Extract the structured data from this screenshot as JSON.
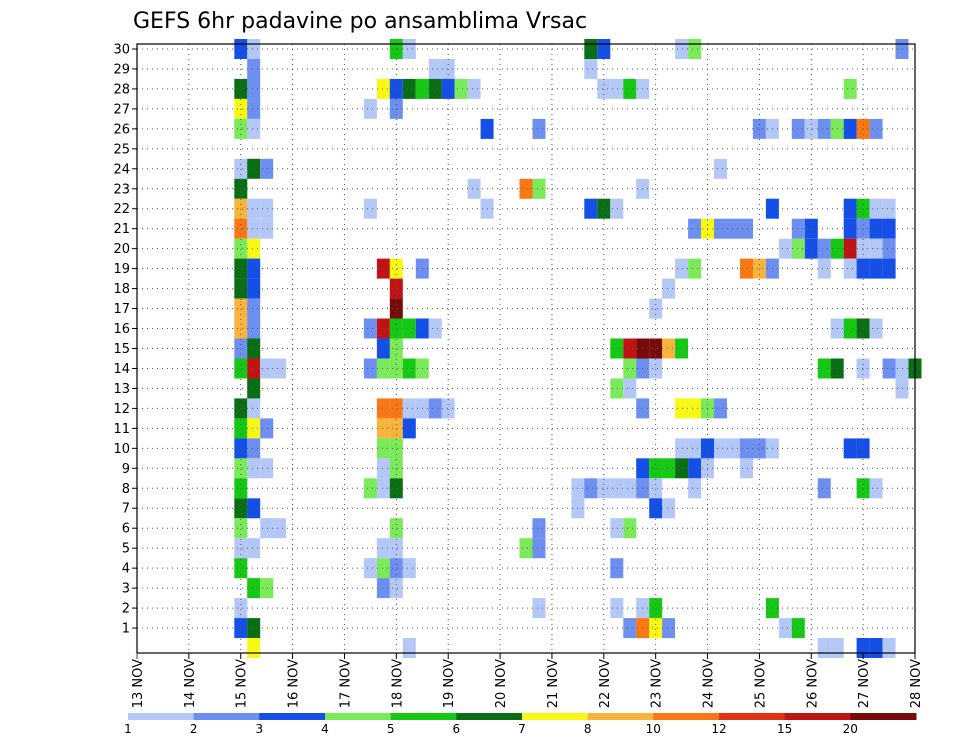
{
  "chart_data": {
    "type": "heatmap",
    "title": "GEFS 6hr padavine po ansamblima Vrsac",
    "xlabel": "",
    "ylabel": "",
    "x_ticks": [
      "13 NOV",
      "14 NOV",
      "15 NOV",
      "16 NOV",
      "17 NOV",
      "18 NOV",
      "19 NOV",
      "20 NOV",
      "21 NOV",
      "22 NOV",
      "23 NOV",
      "24 NOV",
      "25 NOV",
      "26 NOV",
      "27 NOV",
      "28 NOV"
    ],
    "y_ticks": [
      "1",
      "2",
      "3",
      "4",
      "5",
      "6",
      "7",
      "8",
      "9",
      "10",
      "11",
      "12",
      "13",
      "14",
      "15",
      "16",
      "17",
      "18",
      "19",
      "20",
      "21",
      "22",
      "23",
      "24",
      "25",
      "26",
      "27",
      "28",
      "29",
      "30"
    ],
    "x_range_days": [
      0,
      15
    ],
    "y_range_members": [
      0,
      30
    ],
    "grid": true,
    "step_hours": 6,
    "colorbar": {
      "levels": [
        "1",
        "2",
        "3",
        "4",
        "5",
        "6",
        "7",
        "8",
        "10",
        "12",
        "15",
        "20"
      ],
      "colors": [
        "#b4c8f8",
        "#6c8ff0",
        "#1450e8",
        "#7aea5a",
        "#14c814",
        "#0a6e14",
        "#f8f814",
        "#f8b43c",
        "#f87814",
        "#e03214",
        "#c01414",
        "#780a0a"
      ]
    },
    "cells": [
      {
        "m": 30,
        "d": 2.0,
        "c": 3
      },
      {
        "m": 30,
        "d": 2.25,
        "c": 1
      },
      {
        "m": 30,
        "d": 5.0,
        "c": 5
      },
      {
        "m": 30,
        "d": 5.25,
        "c": 1
      },
      {
        "m": 30,
        "d": 8.75,
        "c": 6
      },
      {
        "m": 30,
        "d": 9.0,
        "c": 3
      },
      {
        "m": 30,
        "d": 10.5,
        "c": 1
      },
      {
        "m": 30,
        "d": 10.75,
        "c": 4
      },
      {
        "m": 30,
        "d": 14.75,
        "c": 2
      },
      {
        "m": 29,
        "d": 2.25,
        "c": 2
      },
      {
        "m": 29,
        "d": 5.75,
        "c": 1
      },
      {
        "m": 29,
        "d": 6.0,
        "c": 1
      },
      {
        "m": 29,
        "d": 8.75,
        "c": 1
      },
      {
        "m": 28,
        "d": 2.0,
        "c": 6
      },
      {
        "m": 28,
        "d": 2.25,
        "c": 2
      },
      {
        "m": 28,
        "d": 4.75,
        "c": 7
      },
      {
        "m": 28,
        "d": 5.0,
        "c": 3
      },
      {
        "m": 28,
        "d": 5.25,
        "c": 6
      },
      {
        "m": 28,
        "d": 5.5,
        "c": 5
      },
      {
        "m": 28,
        "d": 5.75,
        "c": 6
      },
      {
        "m": 28,
        "d": 6.0,
        "c": 3
      },
      {
        "m": 28,
        "d": 6.25,
        "c": 4
      },
      {
        "m": 28,
        "d": 6.5,
        "c": 1
      },
      {
        "m": 28,
        "d": 9.0,
        "c": 1
      },
      {
        "m": 28,
        "d": 9.25,
        "c": 1
      },
      {
        "m": 28,
        "d": 9.5,
        "c": 5
      },
      {
        "m": 28,
        "d": 9.75,
        "c": 1
      },
      {
        "m": 28,
        "d": 13.75,
        "c": 4
      },
      {
        "m": 27,
        "d": 2.0,
        "c": 7
      },
      {
        "m": 27,
        "d": 2.25,
        "c": 2
      },
      {
        "m": 27,
        "d": 4.5,
        "c": 1
      },
      {
        "m": 27,
        "d": 5.0,
        "c": 2
      },
      {
        "m": 26,
        "d": 2.0,
        "c": 4
      },
      {
        "m": 26,
        "d": 2.25,
        "c": 1
      },
      {
        "m": 26,
        "d": 6.75,
        "c": 3
      },
      {
        "m": 26,
        "d": 7.75,
        "c": 2
      },
      {
        "m": 26,
        "d": 12.0,
        "c": 2
      },
      {
        "m": 26,
        "d": 12.25,
        "c": 1
      },
      {
        "m": 26,
        "d": 12.75,
        "c": 2
      },
      {
        "m": 26,
        "d": 13.0,
        "c": 1
      },
      {
        "m": 26,
        "d": 13.25,
        "c": 2
      },
      {
        "m": 26,
        "d": 13.5,
        "c": 4
      },
      {
        "m": 26,
        "d": 13.75,
        "c": 3
      },
      {
        "m": 26,
        "d": 14.0,
        "c": 9
      },
      {
        "m": 26,
        "d": 14.25,
        "c": 2
      },
      {
        "m": 24,
        "d": 2.0,
        "c": 1
      },
      {
        "m": 24,
        "d": 2.25,
        "c": 6
      },
      {
        "m": 24,
        "d": 2.5,
        "c": 2
      },
      {
        "m": 24,
        "d": 11.25,
        "c": 1
      },
      {
        "m": 23,
        "d": 2.0,
        "c": 6
      },
      {
        "m": 23,
        "d": 6.5,
        "c": 1
      },
      {
        "m": 23,
        "d": 7.5,
        "c": 9
      },
      {
        "m": 23,
        "d": 7.75,
        "c": 4
      },
      {
        "m": 23,
        "d": 9.75,
        "c": 1
      },
      {
        "m": 22,
        "d": 2.0,
        "c": 8
      },
      {
        "m": 22,
        "d": 2.25,
        "c": 1
      },
      {
        "m": 22,
        "d": 2.5,
        "c": 1
      },
      {
        "m": 22,
        "d": 4.5,
        "c": 1
      },
      {
        "m": 22,
        "d": 6.75,
        "c": 1
      },
      {
        "m": 22,
        "d": 8.75,
        "c": 3
      },
      {
        "m": 22,
        "d": 9.0,
        "c": 6
      },
      {
        "m": 22,
        "d": 9.25,
        "c": 1
      },
      {
        "m": 22,
        "d": 12.25,
        "c": 3
      },
      {
        "m": 22,
        "d": 13.75,
        "c": 3
      },
      {
        "m": 22,
        "d": 14.0,
        "c": 5
      },
      {
        "m": 22,
        "d": 14.25,
        "c": 1
      },
      {
        "m": 22,
        "d": 14.5,
        "c": 1
      },
      {
        "m": 21,
        "d": 2.0,
        "c": 9
      },
      {
        "m": 21,
        "d": 2.25,
        "c": 1
      },
      {
        "m": 21,
        "d": 2.5,
        "c": 1
      },
      {
        "m": 21,
        "d": 10.75,
        "c": 2
      },
      {
        "m": 21,
        "d": 11.0,
        "c": 7
      },
      {
        "m": 21,
        "d": 11.25,
        "c": 2
      },
      {
        "m": 21,
        "d": 11.5,
        "c": 2
      },
      {
        "m": 21,
        "d": 11.75,
        "c": 2
      },
      {
        "m": 21,
        "d": 12.75,
        "c": 2
      },
      {
        "m": 21,
        "d": 13.0,
        "c": 3
      },
      {
        "m": 21,
        "d": 13.75,
        "c": 3
      },
      {
        "m": 21,
        "d": 14.0,
        "c": 2
      },
      {
        "m": 21,
        "d": 14.25,
        "c": 3
      },
      {
        "m": 21,
        "d": 14.5,
        "c": 3
      },
      {
        "m": 20,
        "d": 2.0,
        "c": 4
      },
      {
        "m": 20,
        "d": 2.25,
        "c": 7
      },
      {
        "m": 20,
        "d": 12.5,
        "c": 1
      },
      {
        "m": 20,
        "d": 12.75,
        "c": 4
      },
      {
        "m": 20,
        "d": 13.0,
        "c": 3
      },
      {
        "m": 20,
        "d": 13.25,
        "c": 2
      },
      {
        "m": 20,
        "d": 13.5,
        "c": 5
      },
      {
        "m": 20,
        "d": 13.75,
        "c": 11
      },
      {
        "m": 20,
        "d": 14.0,
        "c": 1
      },
      {
        "m": 20,
        "d": 14.25,
        "c": 1
      },
      {
        "m": 20,
        "d": 14.5,
        "c": 2
      },
      {
        "m": 19,
        "d": 2.0,
        "c": 6
      },
      {
        "m": 19,
        "d": 2.25,
        "c": 3
      },
      {
        "m": 19,
        "d": 4.75,
        "c": 11
      },
      {
        "m": 19,
        "d": 5.0,
        "c": 7
      },
      {
        "m": 19,
        "d": 5.5,
        "c": 2
      },
      {
        "m": 19,
        "d": 10.5,
        "c": 1
      },
      {
        "m": 19,
        "d": 10.75,
        "c": 4
      },
      {
        "m": 19,
        "d": 11.75,
        "c": 9
      },
      {
        "m": 19,
        "d": 12.0,
        "c": 8
      },
      {
        "m": 19,
        "d": 12.25,
        "c": 2
      },
      {
        "m": 19,
        "d": 13.25,
        "c": 1
      },
      {
        "m": 19,
        "d": 13.75,
        "c": 1
      },
      {
        "m": 19,
        "d": 14.0,
        "c": 3
      },
      {
        "m": 19,
        "d": 14.25,
        "c": 3
      },
      {
        "m": 19,
        "d": 14.5,
        "c": 3
      },
      {
        "m": 18,
        "d": 2.0,
        "c": 6
      },
      {
        "m": 18,
        "d": 2.25,
        "c": 3
      },
      {
        "m": 18,
        "d": 5.0,
        "c": 11
      },
      {
        "m": 18,
        "d": 10.25,
        "c": 1
      },
      {
        "m": 17,
        "d": 2.0,
        "c": 8
      },
      {
        "m": 17,
        "d": 2.25,
        "c": 2
      },
      {
        "m": 17,
        "d": 5.0,
        "c": 12
      },
      {
        "m": 17,
        "d": 10.0,
        "c": 1
      },
      {
        "m": 16,
        "d": 2.0,
        "c": 8
      },
      {
        "m": 16,
        "d": 2.25,
        "c": 2
      },
      {
        "m": 16,
        "d": 4.5,
        "c": 2
      },
      {
        "m": 16,
        "d": 4.75,
        "c": 11
      },
      {
        "m": 16,
        "d": 5.0,
        "c": 5
      },
      {
        "m": 16,
        "d": 5.25,
        "c": 5
      },
      {
        "m": 16,
        "d": 5.5,
        "c": 3
      },
      {
        "m": 16,
        "d": 5.75,
        "c": 1
      },
      {
        "m": 16,
        "d": 13.5,
        "c": 1
      },
      {
        "m": 16,
        "d": 13.75,
        "c": 5
      },
      {
        "m": 16,
        "d": 14.0,
        "c": 6
      },
      {
        "m": 16,
        "d": 14.25,
        "c": 1
      },
      {
        "m": 15,
        "d": 2.0,
        "c": 2
      },
      {
        "m": 15,
        "d": 2.25,
        "c": 6
      },
      {
        "m": 15,
        "d": 4.75,
        "c": 3
      },
      {
        "m": 15,
        "d": 5.0,
        "c": 4
      },
      {
        "m": 15,
        "d": 9.25,
        "c": 5
      },
      {
        "m": 15,
        "d": 9.5,
        "c": 11
      },
      {
        "m": 15,
        "d": 9.75,
        "c": 12
      },
      {
        "m": 15,
        "d": 10.0,
        "c": 12
      },
      {
        "m": 15,
        "d": 10.25,
        "c": 8
      },
      {
        "m": 15,
        "d": 10.5,
        "c": 5
      },
      {
        "m": 14,
        "d": 2.0,
        "c": 5
      },
      {
        "m": 14,
        "d": 2.25,
        "c": 11
      },
      {
        "m": 14,
        "d": 2.5,
        "c": 1
      },
      {
        "m": 14,
        "d": 2.75,
        "c": 1
      },
      {
        "m": 14,
        "d": 4.5,
        "c": 2
      },
      {
        "m": 14,
        "d": 4.75,
        "c": 4
      },
      {
        "m": 14,
        "d": 5.0,
        "c": 4
      },
      {
        "m": 14,
        "d": 5.25,
        "c": 5
      },
      {
        "m": 14,
        "d": 5.5,
        "c": 4
      },
      {
        "m": 14,
        "d": 9.5,
        "c": 4
      },
      {
        "m": 14,
        "d": 9.75,
        "c": 2
      },
      {
        "m": 14,
        "d": 10.0,
        "c": 1
      },
      {
        "m": 14,
        "d": 13.25,
        "c": 5
      },
      {
        "m": 14,
        "d": 13.5,
        "c": 6
      },
      {
        "m": 14,
        "d": 14.0,
        "c": 1
      },
      {
        "m": 14,
        "d": 14.5,
        "c": 2
      },
      {
        "m": 14,
        "d": 14.75,
        "c": 1
      },
      {
        "m": 14,
        "d": 15.0,
        "c": 6
      },
      {
        "m": 13,
        "d": 2.25,
        "c": 6
      },
      {
        "m": 13,
        "d": 9.25,
        "c": 4
      },
      {
        "m": 13,
        "d": 9.5,
        "c": 1
      },
      {
        "m": 13,
        "d": 14.75,
        "c": 1
      },
      {
        "m": 12,
        "d": 2.0,
        "c": 6
      },
      {
        "m": 12,
        "d": 2.25,
        "c": 1
      },
      {
        "m": 12,
        "d": 4.75,
        "c": 9
      },
      {
        "m": 12,
        "d": 5.0,
        "c": 9
      },
      {
        "m": 12,
        "d": 5.25,
        "c": 1
      },
      {
        "m": 12,
        "d": 5.5,
        "c": 1
      },
      {
        "m": 12,
        "d": 5.75,
        "c": 2
      },
      {
        "m": 12,
        "d": 6.0,
        "c": 1
      },
      {
        "m": 12,
        "d": 9.75,
        "c": 2
      },
      {
        "m": 12,
        "d": 10.5,
        "c": 7
      },
      {
        "m": 12,
        "d": 10.75,
        "c": 7
      },
      {
        "m": 12,
        "d": 11.0,
        "c": 4
      },
      {
        "m": 12,
        "d": 11.25,
        "c": 2
      },
      {
        "m": 11,
        "d": 2.0,
        "c": 5
      },
      {
        "m": 11,
        "d": 2.25,
        "c": 7
      },
      {
        "m": 11,
        "d": 2.5,
        "c": 2
      },
      {
        "m": 11,
        "d": 4.75,
        "c": 8
      },
      {
        "m": 11,
        "d": 5.0,
        "c": 8
      },
      {
        "m": 11,
        "d": 5.25,
        "c": 3
      },
      {
        "m": 10,
        "d": 2.0,
        "c": 3
      },
      {
        "m": 10,
        "d": 2.25,
        "c": 2
      },
      {
        "m": 10,
        "d": 4.75,
        "c": 4
      },
      {
        "m": 10,
        "d": 5.0,
        "c": 4
      },
      {
        "m": 10,
        "d": 10.5,
        "c": 1
      },
      {
        "m": 10,
        "d": 10.75,
        "c": 1
      },
      {
        "m": 10,
        "d": 11.0,
        "c": 3
      },
      {
        "m": 10,
        "d": 11.25,
        "c": 1
      },
      {
        "m": 10,
        "d": 11.5,
        "c": 1
      },
      {
        "m": 10,
        "d": 11.75,
        "c": 2
      },
      {
        "m": 10,
        "d": 12.0,
        "c": 2
      },
      {
        "m": 10,
        "d": 12.25,
        "c": 1
      },
      {
        "m": 10,
        "d": 13.75,
        "c": 3
      },
      {
        "m": 10,
        "d": 14.0,
        "c": 3
      },
      {
        "m": 9,
        "d": 2.0,
        "c": 4
      },
      {
        "m": 9,
        "d": 2.25,
        "c": 1
      },
      {
        "m": 9,
        "d": 2.5,
        "c": 1
      },
      {
        "m": 9,
        "d": 4.75,
        "c": 1
      },
      {
        "m": 9,
        "d": 5.0,
        "c": 4
      },
      {
        "m": 9,
        "d": 9.75,
        "c": 3
      },
      {
        "m": 9,
        "d": 10.0,
        "c": 5
      },
      {
        "m": 9,
        "d": 10.25,
        "c": 5
      },
      {
        "m": 9,
        "d": 10.5,
        "c": 6
      },
      {
        "m": 9,
        "d": 10.75,
        "c": 3
      },
      {
        "m": 9,
        "d": 11.0,
        "c": 1
      },
      {
        "m": 9,
        "d": 11.75,
        "c": 1
      },
      {
        "m": 8,
        "d": 2.0,
        "c": 5
      },
      {
        "m": 8,
        "d": 4.5,
        "c": 4
      },
      {
        "m": 8,
        "d": 4.75,
        "c": 1
      },
      {
        "m": 8,
        "d": 5.0,
        "c": 6
      },
      {
        "m": 8,
        "d": 8.5,
        "c": 1
      },
      {
        "m": 8,
        "d": 8.75,
        "c": 2
      },
      {
        "m": 8,
        "d": 9.0,
        "c": 1
      },
      {
        "m": 8,
        "d": 9.25,
        "c": 1
      },
      {
        "m": 8,
        "d": 9.5,
        "c": 1
      },
      {
        "m": 8,
        "d": 9.75,
        "c": 2
      },
      {
        "m": 8,
        "d": 10.0,
        "c": 1
      },
      {
        "m": 8,
        "d": 10.75,
        "c": 1
      },
      {
        "m": 8,
        "d": 13.25,
        "c": 2
      },
      {
        "m": 8,
        "d": 14.0,
        "c": 5
      },
      {
        "m": 8,
        "d": 14.25,
        "c": 1
      },
      {
        "m": 7,
        "d": 2.0,
        "c": 6
      },
      {
        "m": 7,
        "d": 2.25,
        "c": 3
      },
      {
        "m": 7,
        "d": 8.5,
        "c": 1
      },
      {
        "m": 7,
        "d": 10.0,
        "c": 3
      },
      {
        "m": 7,
        "d": 10.25,
        "c": 1
      },
      {
        "m": 6,
        "d": 2.0,
        "c": 4
      },
      {
        "m": 6,
        "d": 2.5,
        "c": 1
      },
      {
        "m": 6,
        "d": 2.75,
        "c": 1
      },
      {
        "m": 6,
        "d": 5.0,
        "c": 4
      },
      {
        "m": 6,
        "d": 7.75,
        "c": 2
      },
      {
        "m": 6,
        "d": 9.25,
        "c": 1
      },
      {
        "m": 6,
        "d": 9.5,
        "c": 4
      },
      {
        "m": 5,
        "d": 2.0,
        "c": 1
      },
      {
        "m": 5,
        "d": 2.25,
        "c": 1
      },
      {
        "m": 5,
        "d": 4.75,
        "c": 1
      },
      {
        "m": 5,
        "d": 5.0,
        "c": 1
      },
      {
        "m": 5,
        "d": 7.5,
        "c": 4
      },
      {
        "m": 5,
        "d": 7.75,
        "c": 2
      },
      {
        "m": 4,
        "d": 2.0,
        "c": 5
      },
      {
        "m": 4,
        "d": 4.5,
        "c": 1
      },
      {
        "m": 4,
        "d": 4.75,
        "c": 4
      },
      {
        "m": 4,
        "d": 5.0,
        "c": 2
      },
      {
        "m": 4,
        "d": 5.25,
        "c": 1
      },
      {
        "m": 4,
        "d": 9.25,
        "c": 2
      },
      {
        "m": 3,
        "d": 2.25,
        "c": 5
      },
      {
        "m": 3,
        "d": 2.5,
        "c": 4
      },
      {
        "m": 3,
        "d": 4.75,
        "c": 2
      },
      {
        "m": 3,
        "d": 5.0,
        "c": 1
      },
      {
        "m": 2,
        "d": 2.0,
        "c": 1
      },
      {
        "m": 2,
        "d": 7.75,
        "c": 1
      },
      {
        "m": 2,
        "d": 9.25,
        "c": 1
      },
      {
        "m": 2,
        "d": 9.75,
        "c": 1
      },
      {
        "m": 2,
        "d": 10.0,
        "c": 5
      },
      {
        "m": 2,
        "d": 12.25,
        "c": 5
      },
      {
        "m": 1,
        "d": 2.0,
        "c": 3
      },
      {
        "m": 1,
        "d": 2.25,
        "c": 6
      },
      {
        "m": 1,
        "d": 9.5,
        "c": 2
      },
      {
        "m": 1,
        "d": 9.75,
        "c": 9
      },
      {
        "m": 1,
        "d": 10.0,
        "c": 7
      },
      {
        "m": 1,
        "d": 10.25,
        "c": 2
      },
      {
        "m": 1,
        "d": 12.5,
        "c": 1
      },
      {
        "m": 1,
        "d": 12.75,
        "c": 5
      },
      {
        "m": 0,
        "d": 2.25,
        "c": 7
      },
      {
        "m": 0,
        "d": 5.25,
        "c": 1
      },
      {
        "m": 0,
        "d": 13.25,
        "c": 1
      },
      {
        "m": 0,
        "d": 13.5,
        "c": 1
      },
      {
        "m": 0,
        "d": 14.0,
        "c": 3
      },
      {
        "m": 0,
        "d": 14.25,
        "c": 3
      },
      {
        "m": 0,
        "d": 14.5,
        "c": 1
      }
    ]
  }
}
